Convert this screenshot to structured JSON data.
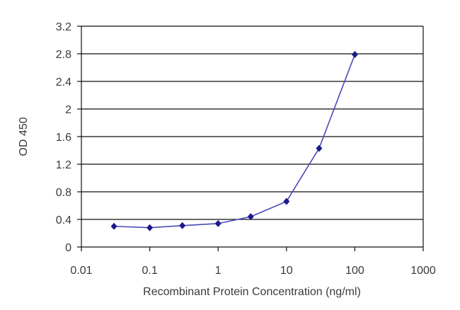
{
  "chart_data": {
    "type": "line",
    "title": "",
    "xlabel": "Recombinant Protein Concentration (ng/ml)",
    "ylabel": "OD 450",
    "x_scale": "log",
    "xlim": [
      0.01,
      1000
    ],
    "ylim": [
      0,
      3.2
    ],
    "x_ticks": [
      0.01,
      0.1,
      1,
      10,
      100,
      1000
    ],
    "x_tick_labels": [
      "0.01",
      "0.1",
      "1",
      "10",
      "100",
      "1000"
    ],
    "y_ticks": [
      0,
      0.4,
      0.8,
      1.2,
      1.6,
      2,
      2.4,
      2.8,
      3.2
    ],
    "y_tick_labels": [
      "0",
      "0.4",
      "0.8",
      "1.2",
      "1.6",
      "2",
      "2.4",
      "2.8",
      "3.2"
    ],
    "grid": "horizontal",
    "legend": "none",
    "series": [
      {
        "x": [
          0.03,
          0.1,
          0.3,
          1,
          3,
          10,
          30,
          100
        ],
        "y": [
          0.3,
          0.28,
          0.31,
          0.34,
          0.44,
          0.66,
          1.43,
          2.79
        ]
      }
    ],
    "colors": {
      "line": "#4a4ab8",
      "marker": "#1a1a8c",
      "grid": "#111111",
      "axis": "#111111",
      "text": "#3a3a3a"
    }
  }
}
